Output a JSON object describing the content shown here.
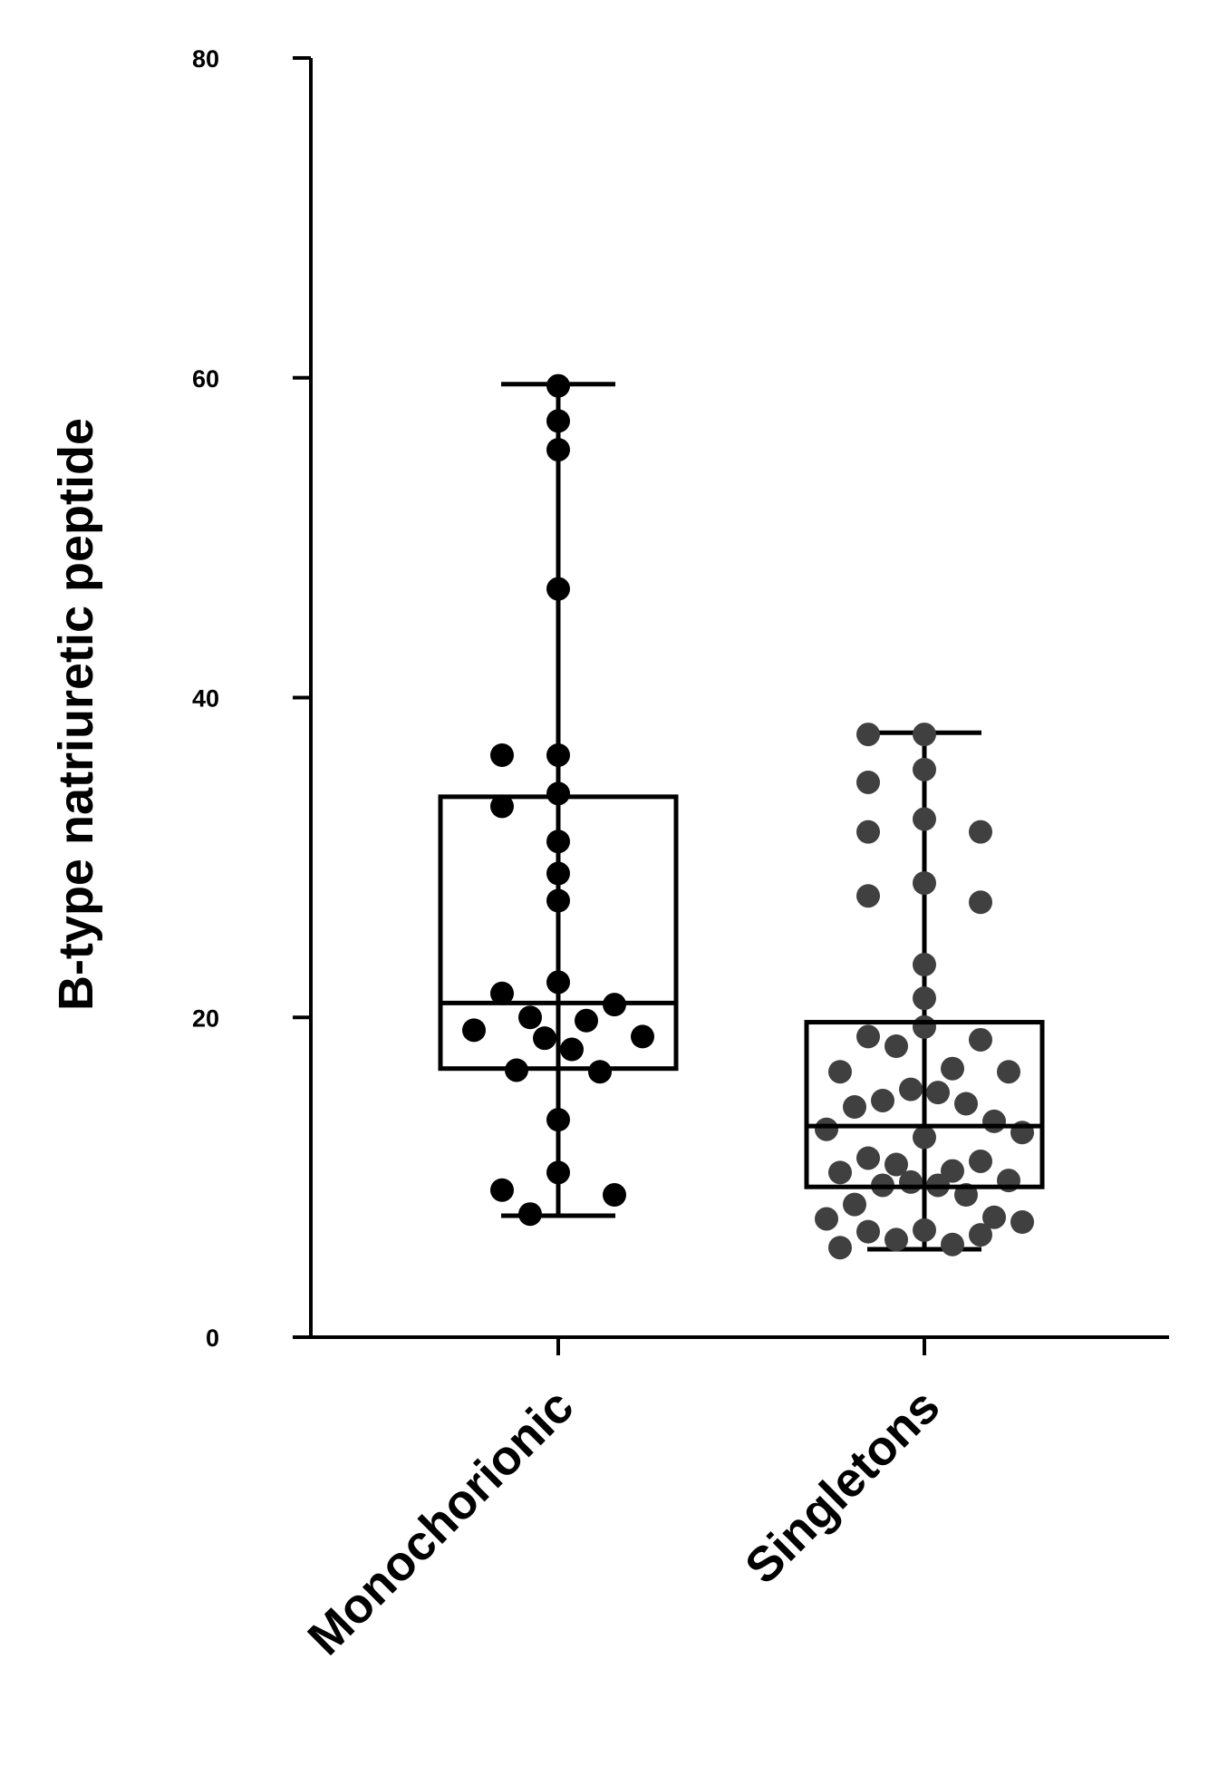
{
  "chart_data": {
    "type": "box",
    "ylabel": "B-type natriuretic peptide",
    "xlabel": "",
    "title": "",
    "ylim": [
      0,
      80
    ],
    "yticks": [
      0,
      20,
      40,
      60,
      80
    ],
    "categories": [
      "Monochorionic",
      "Singletons"
    ],
    "series": [
      {
        "category": "Monochorionic",
        "point_color": "#000000",
        "box": {
          "min": 7.6,
          "q1": 16.8,
          "median": 20.9,
          "q3": 33.8,
          "max": 59.6
        },
        "points": [
          59.5,
          57.3,
          55.5,
          46.8,
          36.4,
          36.4,
          34.0,
          33.2,
          31.0,
          29.0,
          27.3,
          22.2,
          21.5,
          20.8,
          20.0,
          19.8,
          19.2,
          18.8,
          18.7,
          18.0,
          16.7,
          16.6,
          13.6,
          10.3,
          9.2,
          8.9,
          7.7
        ]
      },
      {
        "category": "Singletons",
        "point_color": "#404040",
        "box": {
          "min": 5.5,
          "q1": 9.4,
          "median": 13.2,
          "q3": 19.7,
          "max": 37.8
        },
        "points": [
          37.7,
          37.7,
          35.5,
          34.7,
          32.4,
          31.6,
          31.6,
          28.4,
          27.6,
          27.2,
          23.3,
          21.2,
          19.4,
          18.8,
          18.6,
          18.2,
          16.8,
          16.6,
          16.6,
          15.5,
          15.3,
          14.8,
          14.6,
          14.4,
          13.5,
          13.0,
          12.8,
          12.5,
          11.2,
          11.0,
          10.8,
          10.4,
          10.3,
          9.8,
          9.7,
          9.5,
          9.5,
          8.9,
          8.3,
          7.5,
          7.4,
          7.2,
          6.7,
          6.6,
          6.4,
          6.1,
          5.8,
          5.6
        ]
      }
    ],
    "grid": false,
    "legend": "none"
  }
}
